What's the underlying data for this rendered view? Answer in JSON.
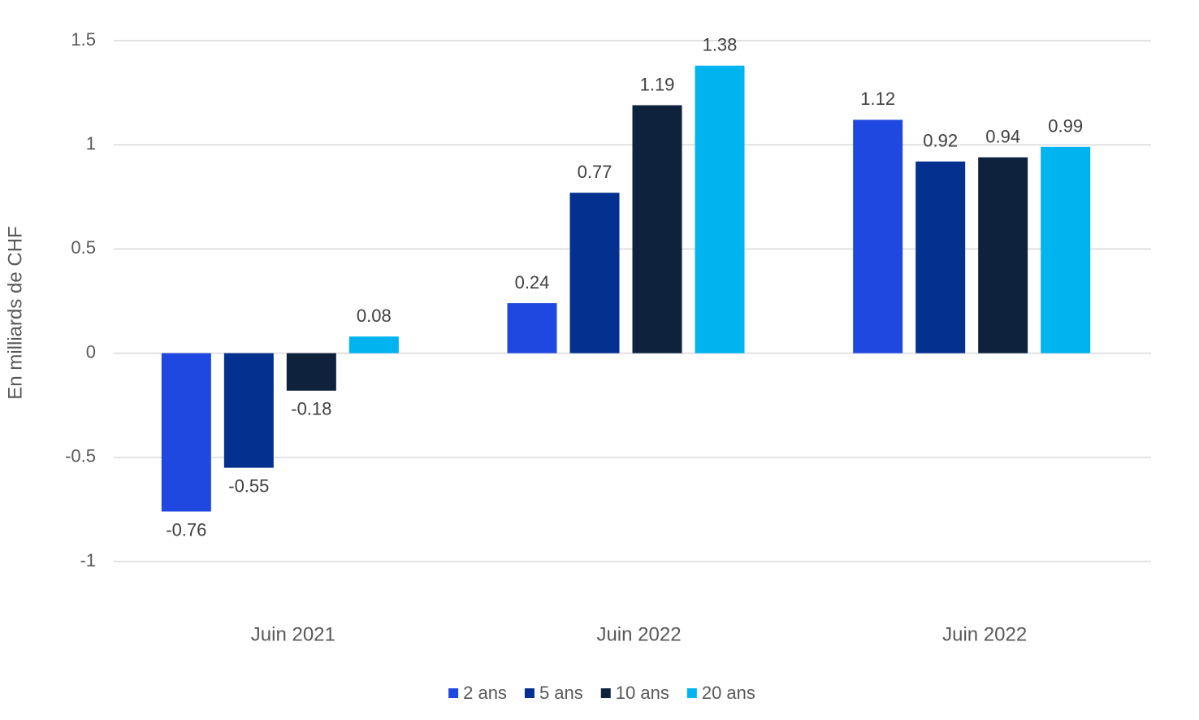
{
  "chart_data": {
    "type": "bar",
    "y_label": "En milliards de CHF",
    "categories": [
      "Juin 2021",
      "Juin 2022",
      "Juin 2022"
    ],
    "series": [
      {
        "name": "2 ans",
        "color": "#1f48e0",
        "values": [
          -0.76,
          0.24,
          1.12
        ]
      },
      {
        "name": "5 ans",
        "color": "#04318f",
        "values": [
          -0.55,
          0.77,
          0.92
        ]
      },
      {
        "name": "10 ans",
        "color": "#0e223d",
        "values": [
          -0.18,
          1.19,
          0.94
        ]
      },
      {
        "name": "20 ans",
        "color": "#00b4f0",
        "values": [
          0.08,
          1.38,
          0.99
        ]
      }
    ],
    "ylim": [
      -1,
      1.5
    ],
    "yticks": [
      -1,
      -0.5,
      0,
      0.5,
      1,
      1.5
    ],
    "grid": true,
    "legend": "bottom"
  }
}
